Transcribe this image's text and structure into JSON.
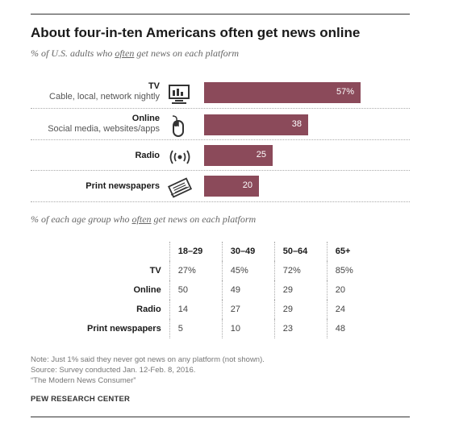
{
  "title": "About four-in-ten Americans often get news online",
  "subtitle": {
    "pre": "% of U.S. adults who ",
    "emph": "often",
    "post": " get news on each platform"
  },
  "chart_data": {
    "type": "bar",
    "orientation": "horizontal",
    "categories": [
      "TV",
      "Online",
      "Radio",
      "Print newspapers"
    ],
    "descriptions": [
      "Cable, local, network nightly",
      "Social media, websites/apps",
      "",
      ""
    ],
    "values": [
      57,
      38,
      25,
      20
    ],
    "value_labels": [
      "57%",
      "38",
      "25",
      "20"
    ],
    "icons": [
      "tv-icon",
      "mouse-icon",
      "radio-icon",
      "newspaper-icon"
    ],
    "xlim": [
      0,
      100
    ],
    "color": "#8b4a5a"
  },
  "subtitle2": {
    "pre": "% of each age group who ",
    "emph": "often",
    "post": " get news on each platform"
  },
  "age_table": {
    "columns": [
      "18–29",
      "30–49",
      "50–64",
      "65+"
    ],
    "rows": [
      {
        "label": "TV",
        "values": [
          "27%",
          "45%",
          "72%",
          "85%"
        ]
      },
      {
        "label": "Online",
        "values": [
          "50",
          "49",
          "29",
          "20"
        ]
      },
      {
        "label": "Radio",
        "values": [
          "14",
          "27",
          "29",
          "24"
        ]
      },
      {
        "label": "Print newspapers",
        "values": [
          "5",
          "10",
          "23",
          "48"
        ]
      }
    ]
  },
  "notes": [
    "Note: Just 1% said they never got news on any platform (not shown).",
    "Source: Survey conducted Jan. 12-Feb. 8, 2016.",
    "“The Modern News Consumer”"
  ],
  "org": "PEW RESEARCH CENTER"
}
